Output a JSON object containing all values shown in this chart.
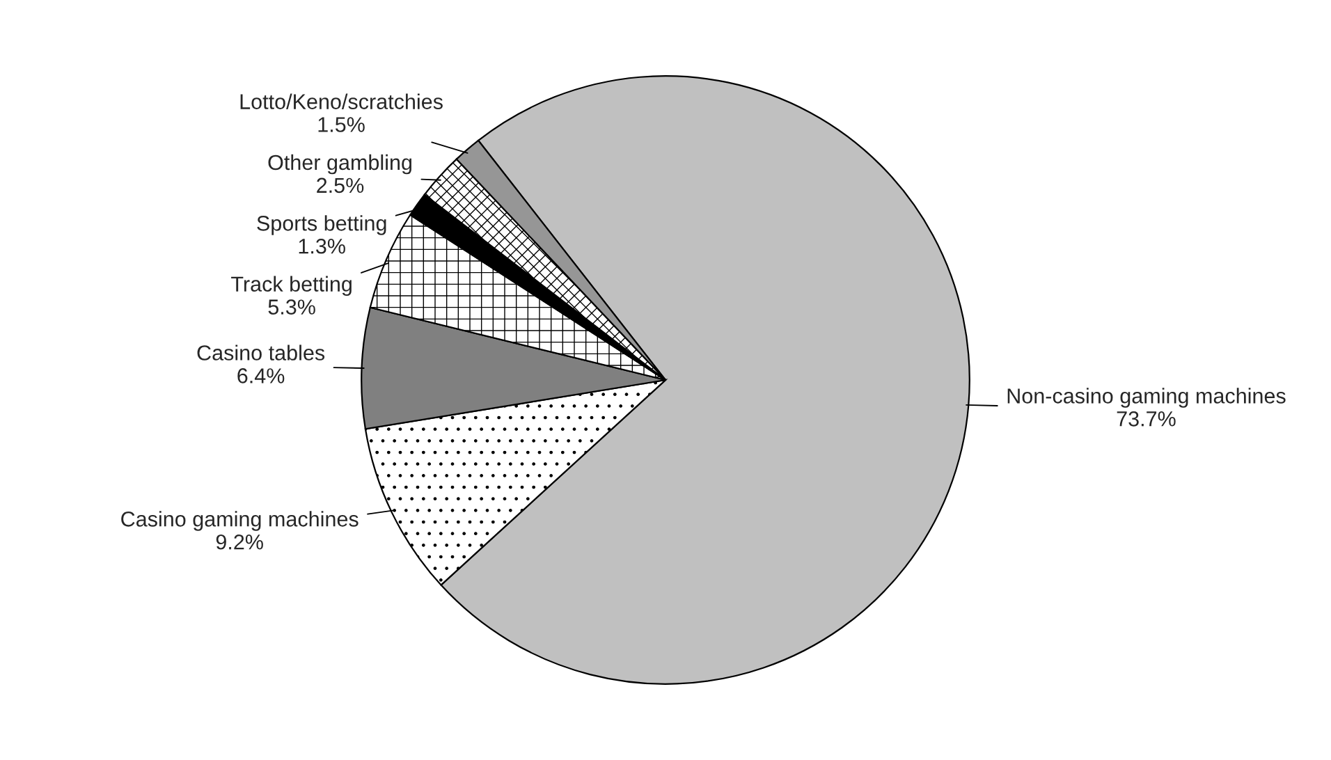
{
  "chart_data": {
    "type": "pie",
    "categories": [
      "Non-casino gaming machines",
      "Casino gaming machines",
      "Casino tables",
      "Track betting",
      "Sports betting",
      "Other gambling",
      "Lotto/Keno/scratchies"
    ],
    "values": [
      73.7,
      9.2,
      6.4,
      5.3,
      1.3,
      2.5,
      1.5
    ],
    "value_labels": [
      "73.7%",
      "9.2%",
      "6.4%",
      "5.3%",
      "1.3%",
      "2.5%",
      "1.5%"
    ],
    "colors": [
      "#c0c0c0",
      "#ffffff",
      "#808080",
      "#ffffff",
      "#000000",
      "#ffffff",
      "#969696"
    ],
    "legend": false
  }
}
